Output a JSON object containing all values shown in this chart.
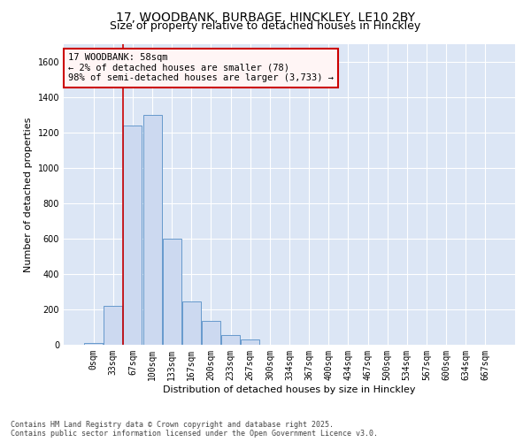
{
  "title_line1": "17, WOODBANK, BURBAGE, HINCKLEY, LE10 2BY",
  "title_line2": "Size of property relative to detached houses in Hinckley",
  "xlabel": "Distribution of detached houses by size in Hinckley",
  "ylabel": "Number of detached properties",
  "bar_color": "#ccd9f0",
  "bar_edge_color": "#6699cc",
  "background_color": "#dce6f5",
  "fig_background": "#ffffff",
  "grid_color": "#ffffff",
  "vline_color": "#cc0000",
  "vline_x": 2,
  "annotation_text": "17 WOODBANK: 58sqm\n← 2% of detached houses are smaller (78)\n98% of semi-detached houses are larger (3,733) →",
  "annotation_edge_color": "#cc0000",
  "annotation_face_color": "#fff5f5",
  "bins": [
    "0sqm",
    "33sqm",
    "67sqm",
    "100sqm",
    "133sqm",
    "167sqm",
    "200sqm",
    "233sqm",
    "267sqm",
    "300sqm",
    "334sqm",
    "367sqm",
    "400sqm",
    "434sqm",
    "467sqm",
    "500sqm",
    "534sqm",
    "567sqm",
    "600sqm",
    "634sqm",
    "667sqm"
  ],
  "values": [
    10,
    220,
    1240,
    1300,
    600,
    245,
    135,
    55,
    28,
    0,
    0,
    0,
    0,
    0,
    0,
    0,
    0,
    0,
    0,
    0,
    0
  ],
  "ylim": [
    0,
    1700
  ],
  "yticks": [
    0,
    200,
    400,
    600,
    800,
    1000,
    1200,
    1400,
    1600
  ],
  "footer_line1": "Contains HM Land Registry data © Crown copyright and database right 2025.",
  "footer_line2": "Contains public sector information licensed under the Open Government Licence v3.0.",
  "title_fontsize": 10,
  "subtitle_fontsize": 9,
  "tick_fontsize": 7,
  "label_fontsize": 8,
  "footer_fontsize": 6
}
